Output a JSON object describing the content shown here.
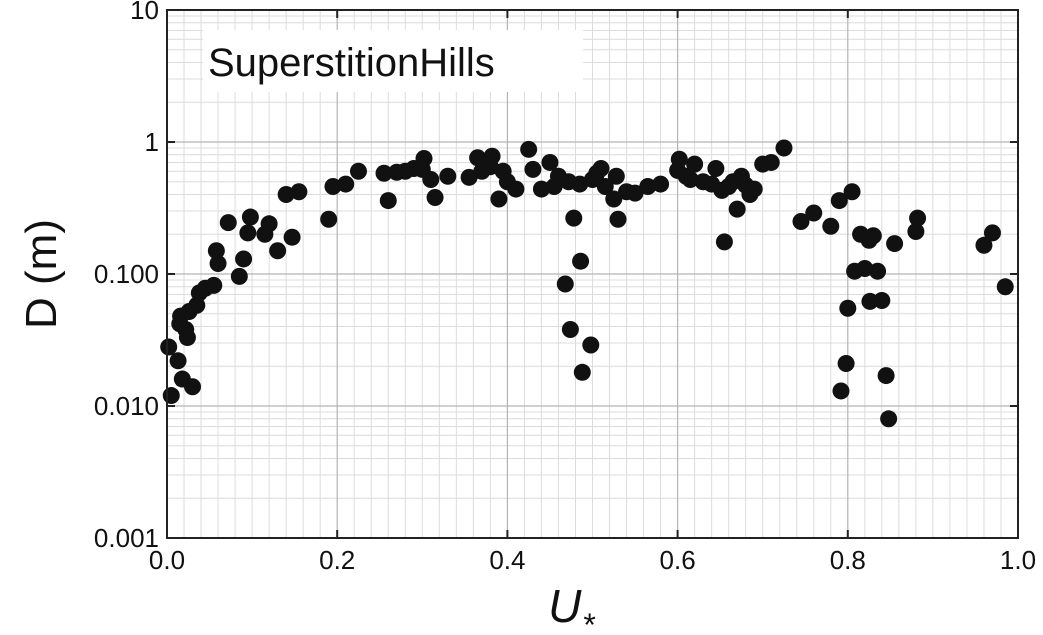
{
  "chart_data": {
    "type": "scatter",
    "annotation": "SuperstitionHills",
    "xlabel": "U",
    "xlabel_sub": "*",
    "ylabel": "D (m)",
    "xlim": [
      0,
      1.0
    ],
    "ylim": [
      0.001,
      10
    ],
    "yscale": "log",
    "grid": true,
    "x_ticks": [
      0.0,
      0.2,
      0.4,
      0.6,
      0.8,
      1.0
    ],
    "x_tick_labels": [
      "0.0",
      "0.2",
      "0.4",
      "0.6",
      "0.8",
      "1.0"
    ],
    "y_ticks": [
      0.001,
      0.01,
      0.1,
      1,
      10
    ],
    "y_tick_labels": [
      "0.001",
      "0.010",
      "0.100",
      "1",
      "10"
    ],
    "marker_color": "#111111",
    "points": [
      [
        0.002,
        0.028
      ],
      [
        0.005,
        0.012
      ],
      [
        0.013,
        0.022
      ],
      [
        0.015,
        0.042
      ],
      [
        0.016,
        0.048
      ],
      [
        0.018,
        0.016
      ],
      [
        0.022,
        0.038
      ],
      [
        0.024,
        0.033
      ],
      [
        0.026,
        0.052
      ],
      [
        0.03,
        0.014
      ],
      [
        0.035,
        0.058
      ],
      [
        0.038,
        0.072
      ],
      [
        0.045,
        0.078
      ],
      [
        0.055,
        0.082
      ],
      [
        0.058,
        0.15
      ],
      [
        0.06,
        0.12
      ],
      [
        0.072,
        0.245
      ],
      [
        0.085,
        0.096
      ],
      [
        0.09,
        0.13
      ],
      [
        0.095,
        0.205
      ],
      [
        0.098,
        0.27
      ],
      [
        0.115,
        0.2
      ],
      [
        0.12,
        0.24
      ],
      [
        0.13,
        0.15
      ],
      [
        0.14,
        0.4
      ],
      [
        0.147,
        0.19
      ],
      [
        0.155,
        0.42
      ],
      [
        0.19,
        0.26
      ],
      [
        0.195,
        0.46
      ],
      [
        0.21,
        0.48
      ],
      [
        0.225,
        0.6
      ],
      [
        0.255,
        0.58
      ],
      [
        0.26,
        0.36
      ],
      [
        0.27,
        0.59
      ],
      [
        0.28,
        0.6
      ],
      [
        0.29,
        0.63
      ],
      [
        0.3,
        0.62
      ],
      [
        0.302,
        0.75
      ],
      [
        0.31,
        0.52
      ],
      [
        0.315,
        0.38
      ],
      [
        0.33,
        0.55
      ],
      [
        0.355,
        0.54
      ],
      [
        0.365,
        0.76
      ],
      [
        0.37,
        0.6
      ],
      [
        0.38,
        0.65
      ],
      [
        0.382,
        0.78
      ],
      [
        0.39,
        0.37
      ],
      [
        0.395,
        0.6
      ],
      [
        0.4,
        0.5
      ],
      [
        0.41,
        0.44
      ],
      [
        0.425,
        0.88
      ],
      [
        0.43,
        0.62
      ],
      [
        0.44,
        0.44
      ],
      [
        0.45,
        0.7
      ],
      [
        0.455,
        0.46
      ],
      [
        0.46,
        0.55
      ],
      [
        0.468,
        0.084
      ],
      [
        0.472,
        0.5
      ],
      [
        0.474,
        0.038
      ],
      [
        0.478,
        0.265
      ],
      [
        0.485,
        0.48
      ],
      [
        0.486,
        0.125
      ],
      [
        0.488,
        0.018
      ],
      [
        0.498,
        0.029
      ],
      [
        0.5,
        0.52
      ],
      [
        0.505,
        0.58
      ],
      [
        0.51,
        0.63
      ],
      [
        0.515,
        0.46
      ],
      [
        0.525,
        0.37
      ],
      [
        0.528,
        0.55
      ],
      [
        0.53,
        0.26
      ],
      [
        0.54,
        0.42
      ],
      [
        0.55,
        0.41
      ],
      [
        0.565,
        0.46
      ],
      [
        0.58,
        0.48
      ],
      [
        0.6,
        0.61
      ],
      [
        0.602,
        0.74
      ],
      [
        0.61,
        0.55
      ],
      [
        0.615,
        0.52
      ],
      [
        0.62,
        0.68
      ],
      [
        0.63,
        0.5
      ],
      [
        0.64,
        0.48
      ],
      [
        0.645,
        0.63
      ],
      [
        0.652,
        0.43
      ],
      [
        0.655,
        0.175
      ],
      [
        0.66,
        0.46
      ],
      [
        0.665,
        0.5
      ],
      [
        0.67,
        0.31
      ],
      [
        0.675,
        0.55
      ],
      [
        0.68,
        0.47
      ],
      [
        0.685,
        0.4
      ],
      [
        0.69,
        0.44
      ],
      [
        0.7,
        0.68
      ],
      [
        0.71,
        0.7
      ],
      [
        0.725,
        0.9
      ],
      [
        0.745,
        0.25
      ],
      [
        0.76,
        0.29
      ],
      [
        0.78,
        0.23
      ],
      [
        0.79,
        0.36
      ],
      [
        0.792,
        0.013
      ],
      [
        0.798,
        0.021
      ],
      [
        0.8,
        0.055
      ],
      [
        0.805,
        0.42
      ],
      [
        0.808,
        0.105
      ],
      [
        0.815,
        0.2
      ],
      [
        0.82,
        0.11
      ],
      [
        0.825,
        0.18
      ],
      [
        0.826,
        0.062
      ],
      [
        0.83,
        0.195
      ],
      [
        0.835,
        0.105
      ],
      [
        0.84,
        0.063
      ],
      [
        0.845,
        0.017
      ],
      [
        0.848,
        0.008
      ],
      [
        0.855,
        0.17
      ],
      [
        0.88,
        0.21
      ],
      [
        0.882,
        0.265
      ],
      [
        0.96,
        0.165
      ],
      [
        0.97,
        0.205
      ],
      [
        0.985,
        0.08
      ]
    ]
  }
}
